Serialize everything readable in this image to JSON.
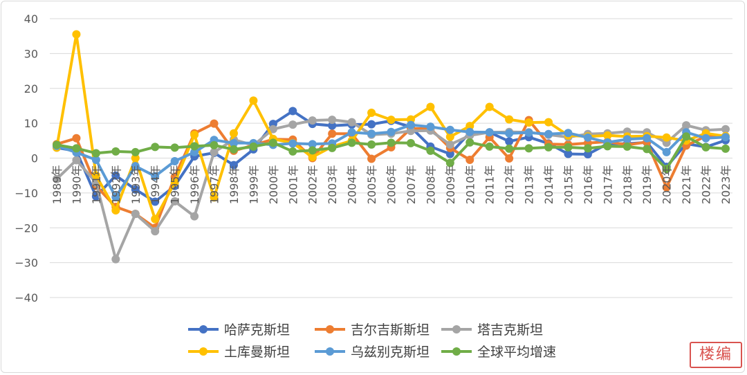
{
  "chart_data": {
    "type": "line",
    "title": "",
    "xlabel": "",
    "ylabel": "",
    "ylim": [
      -40,
      40
    ],
    "yticks": [
      -40,
      -30,
      -20,
      -10,
      0,
      10,
      20,
      30,
      40
    ],
    "grid": true,
    "legend_position": "bottom",
    "categories": [
      "1989年",
      "1990年",
      "1991年",
      "1992年",
      "1993年",
      "1994年",
      "1995年",
      "1996年",
      "1997年",
      "1998年",
      "1999年",
      "2000年",
      "2001年",
      "2002年",
      "2003年",
      "2004年",
      "2005年",
      "2006年",
      "2007年",
      "2008年",
      "2009年",
      "2010年",
      "2011年",
      "2012年",
      "2013年",
      "2014年",
      "2015年",
      "2016年",
      "2017年",
      "2018年",
      "2019年",
      "2020年",
      "2021年",
      "2022年",
      "2023年"
    ],
    "series": [
      {
        "name": "哈萨克斯坦",
        "color": "#4472c4",
        "values": [
          3,
          2,
          -11,
          -5,
          -9,
          -12.5,
          -8,
          0.5,
          1.5,
          -2,
          2.5,
          9.8,
          13.5,
          9.8,
          9.3,
          9.6,
          9.7,
          10.7,
          8.9,
          3.3,
          1.2,
          7.3,
          7.4,
          4.8,
          6,
          4.2,
          1.2,
          1.1,
          4.1,
          4.1,
          4.5,
          -2.5,
          4.1,
          3.2,
          5.1
        ]
      },
      {
        "name": "吉尔吉斯斯坦",
        "color": "#ed7d31",
        "values": [
          4,
          5.7,
          -8,
          -14,
          -16,
          -20,
          -5.4,
          7.1,
          9.9,
          2.1,
          3.7,
          5.4,
          5.3,
          0,
          7,
          7,
          -0.2,
          3.1,
          8.5,
          8.4,
          2.9,
          -0.5,
          6,
          -0.1,
          10.9,
          4,
          3.9,
          4.3,
          4.7,
          3.8,
          4.6,
          -8.4,
          3.6,
          6.3,
          6.2
        ]
      },
      {
        "name": "塔吉克斯坦",
        "color": "#a5a5a5",
        "values": [
          -6,
          -0.6,
          -7,
          -29,
          -16,
          -21,
          -12.4,
          -16.7,
          1.7,
          5.3,
          3.7,
          8.3,
          9.6,
          10.8,
          11,
          10.3,
          6.7,
          7,
          7.8,
          7.9,
          3.9,
          6.5,
          7.4,
          7.5,
          7.4,
          6.7,
          6,
          6.9,
          7.1,
          7.6,
          7.4,
          4.4,
          9.4,
          8,
          8.3
        ]
      },
      {
        "name": "土库曼斯坦",
        "color": "#ffc000",
        "values": [
          3,
          35.5,
          -5,
          -15,
          0,
          -17.5,
          -7,
          6.7,
          -11.3,
          7.1,
          16.5,
          5.5,
          4.3,
          0.3,
          3.3,
          5,
          13,
          11,
          11.1,
          14.7,
          6.1,
          9.2,
          14.7,
          11.1,
          10.2,
          10.3,
          6.5,
          6.2,
          6.5,
          6.2,
          6.3,
          5.9,
          5,
          7.1,
          6.3
        ]
      },
      {
        "name": "乌兹别克斯坦",
        "color": "#5b9bd5",
        "values": [
          3.5,
          1.6,
          -0.5,
          -11.2,
          -2.3,
          -5.2,
          -0.9,
          1.7,
          5.2,
          4.3,
          4.3,
          3.8,
          4.2,
          4,
          4.2,
          7.4,
          7,
          7.5,
          9.5,
          9,
          8.1,
          7.5,
          7.4,
          7.1,
          7.3,
          6.9,
          7.2,
          5.9,
          4.5,
          5.4,
          5.7,
          1.7,
          7.4,
          5.7,
          6
        ]
      },
      {
        "name": "全球平均增速",
        "color": "#70ad47",
        "values": [
          3.8,
          2.8,
          1.4,
          1.9,
          1.7,
          3.2,
          3,
          3.4,
          3.7,
          2.5,
          3.3,
          4.4,
          1.9,
          2.2,
          2.9,
          4.4,
          3.9,
          4.4,
          4.3,
          2.1,
          -1.4,
          4.5,
          3.3,
          2.7,
          2.8,
          3.1,
          3.1,
          2.8,
          3.4,
          3.3,
          2.6,
          -3.1,
          6.2,
          3.1,
          2.7
        ]
      }
    ]
  },
  "watermark": {
    "text": "楼编"
  }
}
